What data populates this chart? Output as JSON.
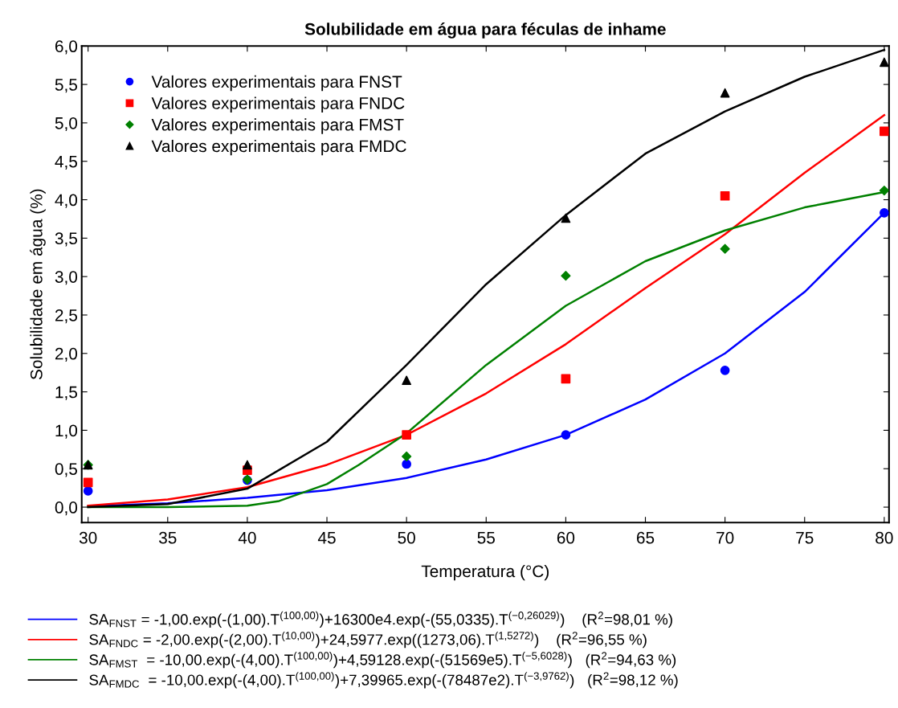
{
  "chart_data": {
    "type": "scatter",
    "title": "Solubilidade em água para féculas de inhame",
    "xlabel": "Temperatura (°C)",
    "ylabel": "Solubilidade em água (%)",
    "xlim": [
      29.6,
      80.3
    ],
    "ylim": [
      -0.2,
      6.0
    ],
    "xticks": [
      30,
      35,
      40,
      45,
      50,
      55,
      60,
      65,
      70,
      75,
      80
    ],
    "yticks": [
      {
        "value": 0,
        "label": "0,0"
      },
      {
        "value": 0.5,
        "label": "0,5"
      },
      {
        "value": 1,
        "label": "1,0"
      },
      {
        "value": 1.5,
        "label": "1,5"
      },
      {
        "value": 2,
        "label": "2,0"
      },
      {
        "value": 2.5,
        "label": "2,5"
      },
      {
        "value": 3,
        "label": "3,0"
      },
      {
        "value": 3.5,
        "label": "3,5"
      },
      {
        "value": 4,
        "label": "4,0"
      },
      {
        "value": 4.5,
        "label": "4,5"
      },
      {
        "value": 5,
        "label": "5,0"
      },
      {
        "value": 5.5,
        "label": "5,5"
      },
      {
        "value": 6,
        "label": "6,0"
      }
    ],
    "grid": false,
    "legend": "top left",
    "series": [
      {
        "type": "line",
        "name": "SA$_{FNST}$ = -1,00.exp(-(1,00).T$^{(100,00)}$)+16300e4.exp(-(55,0335).T$^{(−0,26029)}$)    (R$^{2}$=98,01 %)",
        "color": "#0000ff",
        "x": [
          30,
          35,
          40,
          45,
          50,
          55,
          60,
          65,
          70,
          75,
          80
        ],
        "values": [
          0.01,
          0.05,
          0.12,
          0.22,
          0.38,
          0.62,
          0.94,
          1.4,
          2.0,
          2.8,
          3.83
        ]
      },
      {
        "type": "line",
        "name": "SA$_{FNDC}$ = -2,00.exp(-(2,00).T$^{(10,00)}$)+24,5977.exp((1273,06).T$^{(1,5272)}$)    (R$^{2}$=96,55 %)",
        "color": "#ff0000",
        "x": [
          30,
          35,
          40,
          45,
          50,
          55,
          60,
          65,
          70,
          75,
          80
        ],
        "values": [
          0.02,
          0.1,
          0.26,
          0.55,
          0.94,
          1.48,
          2.12,
          2.85,
          3.55,
          4.35,
          5.1
        ]
      },
      {
        "type": "line",
        "name": "SA$_{FMST}$  = -10,00.exp(-(4,00).T$^{(100,00)}$)+4,59128.exp(-(51569e5).T$^{(−5,6028)}$)   (R$^{2}$=94,63 %)",
        "color": "#008000",
        "x": [
          30,
          35,
          40,
          42,
          45,
          47,
          50,
          55,
          60,
          65,
          70,
          75,
          80
        ],
        "values": [
          0.0,
          0.0,
          0.02,
          0.08,
          0.3,
          0.55,
          0.96,
          1.85,
          2.62,
          3.2,
          3.6,
          3.9,
          4.1
        ]
      },
      {
        "type": "line",
        "name": "SA$_{FMDC}$  = -10,00.exp(-(4,00).T$^{(100,00)}$)+7,39965.exp(-(78487e2).T$^{(−3,9762)}$)   (R$^{2}$=98,12 %)",
        "color": "#000000",
        "x": [
          30,
          35,
          40,
          45,
          50,
          55,
          60,
          65,
          70,
          75,
          80
        ],
        "values": [
          0.0,
          0.04,
          0.24,
          0.85,
          1.85,
          2.9,
          3.8,
          4.6,
          5.15,
          5.6,
          5.95
        ]
      },
      {
        "name": "Valores experimentais para FNST",
        "color": "#0000ff",
        "marker": "circle",
        "x": [
          30,
          40,
          50,
          60,
          70,
          80
        ],
        "values": [
          0.21,
          0.35,
          0.56,
          0.94,
          1.78,
          3.83
        ]
      },
      {
        "name": "Valores experimentais para FNDC",
        "color": "#ff0000",
        "marker": "square",
        "x": [
          30,
          40,
          50,
          60,
          70,
          80
        ],
        "values": [
          0.32,
          0.48,
          0.94,
          1.67,
          4.05,
          4.89
        ]
      },
      {
        "name": "Valores experimentais para FMST",
        "color": "#008000",
        "marker": "diamond",
        "x": [
          30,
          40,
          50,
          60,
          70,
          80
        ],
        "values": [
          0.55,
          0.36,
          0.66,
          3.01,
          3.36,
          4.12
        ]
      },
      {
        "name": "Valores experimentais para FMDC",
        "color": "#000000",
        "marker": "triangle",
        "x": [
          30,
          40,
          50,
          60,
          70,
          80
        ],
        "values": [
          0.55,
          0.55,
          1.65,
          3.76,
          5.39,
          5.79
        ]
      }
    ]
  }
}
